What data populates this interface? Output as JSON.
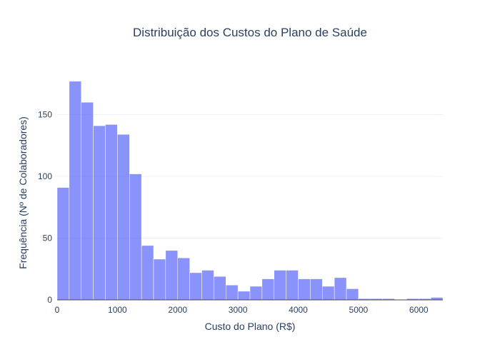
{
  "chart_data": {
    "type": "bar",
    "title": "Distribuição dos Custos do Plano de Saúde",
    "xlabel": "Custo do Plano (R$)",
    "ylabel": "Frequência (Nº de Colaboradores)",
    "xlim": [
      0,
      6400
    ],
    "ylim": [
      0,
      185
    ],
    "bin_width": 200,
    "bin_starts": [
      0,
      200,
      400,
      600,
      800,
      1000,
      1200,
      1400,
      1600,
      1800,
      2000,
      2200,
      2400,
      2600,
      2800,
      3000,
      3200,
      3400,
      3600,
      3800,
      4000,
      4200,
      4400,
      4600,
      4800,
      5000,
      5200,
      5400,
      5600,
      5800,
      6000,
      6200
    ],
    "values": [
      91,
      177,
      160,
      141,
      142,
      134,
      102,
      44,
      33,
      40,
      34,
      22,
      24,
      19,
      12,
      7,
      11,
      17,
      24,
      24,
      17,
      17,
      11,
      18,
      9,
      1,
      1,
      1,
      0,
      1,
      1,
      2
    ],
    "x_ticks": [
      0,
      1000,
      2000,
      3000,
      4000,
      5000,
      6000
    ],
    "y_ticks": [
      0,
      50,
      100,
      150
    ],
    "grid": true,
    "bar_color": "#636efa"
  }
}
